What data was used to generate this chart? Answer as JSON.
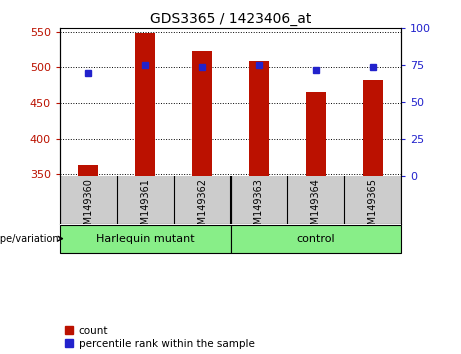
{
  "title": "GDS3365 / 1423406_at",
  "samples": [
    "GSM149360",
    "GSM149361",
    "GSM149362",
    "GSM149363",
    "GSM149364",
    "GSM149365"
  ],
  "counts": [
    363,
    549,
    523,
    509,
    465,
    482
  ],
  "percentiles": [
    70,
    75,
    74,
    75,
    72,
    74
  ],
  "ylim_left": [
    348,
    555
  ],
  "ylim_right": [
    0,
    100
  ],
  "yticks_left": [
    350,
    400,
    450,
    500,
    550
  ],
  "yticks_right": [
    0,
    25,
    50,
    75,
    100
  ],
  "bar_color": "#bb1100",
  "dot_color": "#2222cc",
  "groups": [
    {
      "label": "Harlequin mutant",
      "indices": [
        0,
        1,
        2
      ],
      "color": "#88ee88"
    },
    {
      "label": "control",
      "indices": [
        3,
        4,
        5
      ],
      "color": "#88ee88"
    }
  ],
  "group_label": "genotype/variation",
  "legend_count": "count",
  "legend_percentile": "percentile rank within the sample",
  "bg_plot": "#ffffff",
  "bg_xtick": "#cccccc",
  "bar_width": 0.35,
  "fig_width": 4.61,
  "fig_height": 3.54,
  "dpi": 100
}
